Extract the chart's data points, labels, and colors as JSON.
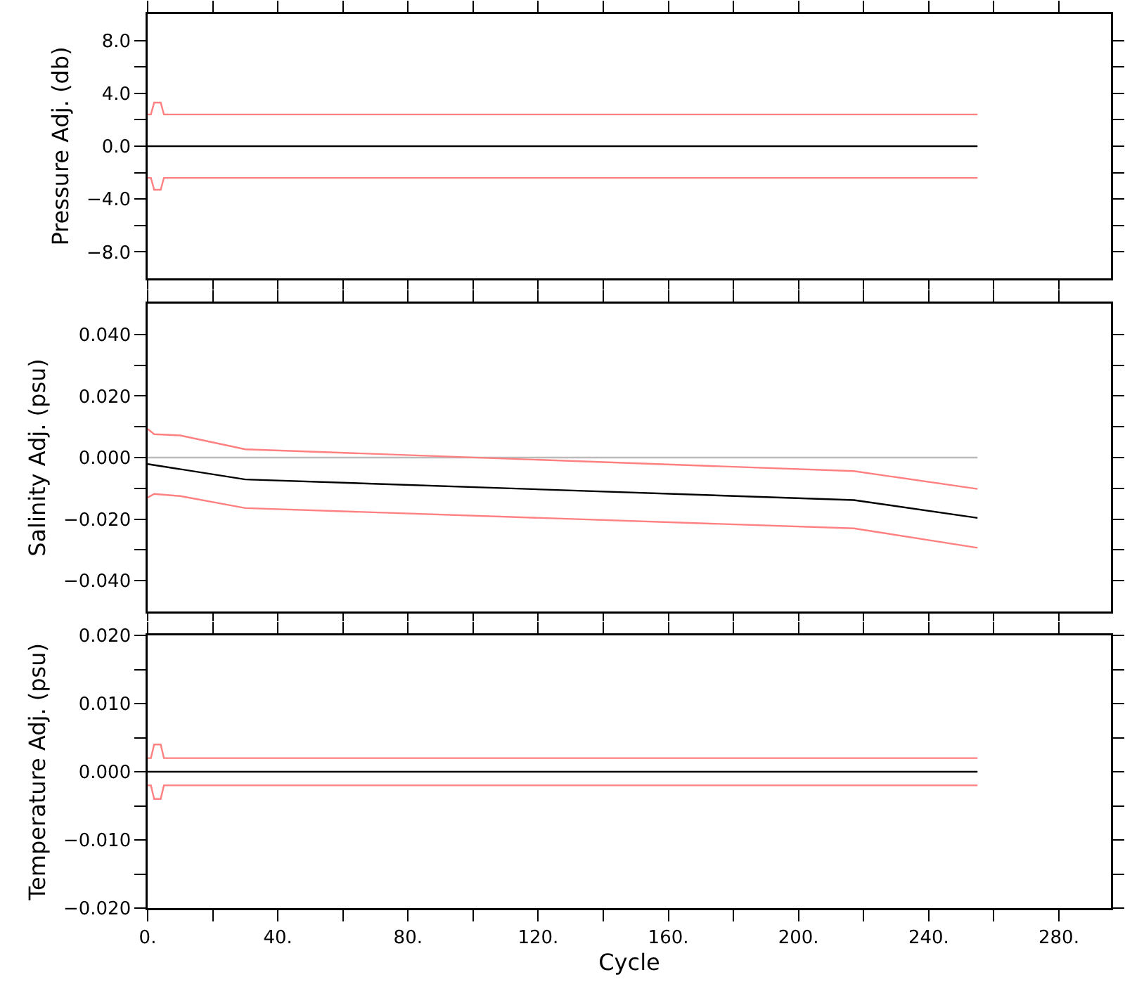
{
  "chart_data": [
    {
      "type": "line",
      "ylabel": "Pressure Adj. (db)",
      "xlim": [
        0,
        296
      ],
      "ylim": [
        -10,
        10
      ],
      "tick_labels": "y",
      "xticks": [
        {
          "value": 0,
          "label": null
        },
        {
          "value": 20,
          "label": null
        },
        {
          "value": 40,
          "label": null
        },
        {
          "value": 60,
          "label": null
        },
        {
          "value": 80,
          "label": null
        },
        {
          "value": 100,
          "label": null
        },
        {
          "value": 120,
          "label": null
        },
        {
          "value": 140,
          "label": null
        },
        {
          "value": 160,
          "label": null
        },
        {
          "value": 180,
          "label": null
        },
        {
          "value": 200,
          "label": null
        },
        {
          "value": 220,
          "label": null
        },
        {
          "value": 240,
          "label": null
        },
        {
          "value": 260,
          "label": null
        },
        {
          "value": 280,
          "label": null
        }
      ],
      "yticks": [
        {
          "value": -8,
          "label": "−8.0"
        },
        {
          "value": -6,
          "label": null
        },
        {
          "value": -4,
          "label": "−4.0"
        },
        {
          "value": -2,
          "label": null
        },
        {
          "value": 0,
          "label": "0.0"
        },
        {
          "value": 2,
          "label": null
        },
        {
          "value": 4,
          "label": "4.0"
        },
        {
          "value": 6,
          "label": null
        },
        {
          "value": 8,
          "label": "8.0"
        }
      ],
      "series": [
        {
          "color": "#ff8080",
          "x": [
            0,
            1,
            2,
            4,
            5,
            255
          ],
          "values": [
            2.4,
            2.4,
            3.3,
            3.3,
            2.4,
            2.4
          ]
        },
        {
          "color": "#ff8080",
          "x": [
            0,
            1,
            2,
            4,
            5,
            255
          ],
          "values": [
            -2.4,
            -2.4,
            -3.3,
            -3.3,
            -2.4,
            -2.4
          ]
        },
        {
          "color": "#000000",
          "x": [
            0,
            255
          ],
          "values": [
            0,
            0
          ]
        }
      ]
    },
    {
      "type": "line",
      "ylabel": "Salinity Adj. (psu)",
      "xlim": [
        0,
        296
      ],
      "ylim": [
        -0.05,
        0.05
      ],
      "tick_labels": "y",
      "xticks": [
        {
          "value": 0,
          "label": null
        },
        {
          "value": 20,
          "label": null
        },
        {
          "value": 40,
          "label": null
        },
        {
          "value": 60,
          "label": null
        },
        {
          "value": 80,
          "label": null
        },
        {
          "value": 100,
          "label": null
        },
        {
          "value": 120,
          "label": null
        },
        {
          "value": 140,
          "label": null
        },
        {
          "value": 160,
          "label": null
        },
        {
          "value": 180,
          "label": null
        },
        {
          "value": 200,
          "label": null
        },
        {
          "value": 220,
          "label": null
        },
        {
          "value": 240,
          "label": null
        },
        {
          "value": 260,
          "label": null
        },
        {
          "value": 280,
          "label": null
        }
      ],
      "yticks": [
        {
          "value": -0.04,
          "label": "−0.040"
        },
        {
          "value": -0.03,
          "label": null
        },
        {
          "value": -0.02,
          "label": "−0.020"
        },
        {
          "value": -0.01,
          "label": null
        },
        {
          "value": 0,
          "label": "0.000"
        },
        {
          "value": 0.01,
          "label": null
        },
        {
          "value": 0.02,
          "label": "0.020"
        },
        {
          "value": 0.03,
          "label": null
        },
        {
          "value": 0.04,
          "label": "0.040"
        }
      ],
      "series": [
        {
          "color": "#bbbbbb",
          "x": [
            0,
            255
          ],
          "values": [
            0,
            0
          ]
        },
        {
          "color": "#ff8080",
          "x": [
            0,
            2,
            10,
            30,
            217,
            255
          ],
          "values": [
            0.0093,
            0.0076,
            0.0072,
            0.0027,
            -0.0044,
            -0.0102
          ]
        },
        {
          "color": "#ff8080",
          "x": [
            0,
            2,
            10,
            30,
            217,
            255
          ],
          "values": [
            -0.013,
            -0.0118,
            -0.0125,
            -0.0164,
            -0.023,
            -0.0293
          ]
        },
        {
          "color": "#000000",
          "x": [
            0,
            30,
            217,
            255
          ],
          "values": [
            -0.0021,
            -0.0071,
            -0.0138,
            -0.0196
          ]
        }
      ]
    },
    {
      "type": "line",
      "xlabel": "Cycle",
      "ylabel": "Temperature Adj. (psu)",
      "xlim": [
        0,
        296
      ],
      "ylim": [
        -0.02,
        0.02
      ],
      "xticks": [
        {
          "value": 0,
          "label": "0."
        },
        {
          "value": 20,
          "label": null
        },
        {
          "value": 40,
          "label": "40."
        },
        {
          "value": 60,
          "label": null
        },
        {
          "value": 80,
          "label": "80."
        },
        {
          "value": 100,
          "label": null
        },
        {
          "value": 120,
          "label": "120."
        },
        {
          "value": 140,
          "label": null
        },
        {
          "value": 160,
          "label": "160."
        },
        {
          "value": 180,
          "label": null
        },
        {
          "value": 200,
          "label": "200."
        },
        {
          "value": 220,
          "label": null
        },
        {
          "value": 240,
          "label": "240."
        },
        {
          "value": 260,
          "label": null
        },
        {
          "value": 280,
          "label": "280."
        }
      ],
      "yticks": [
        {
          "value": -0.02,
          "label": "−0.020"
        },
        {
          "value": -0.015,
          "label": null
        },
        {
          "value": -0.01,
          "label": "−0.010"
        },
        {
          "value": -0.005,
          "label": null
        },
        {
          "value": 0,
          "label": "0.000"
        },
        {
          "value": 0.005,
          "label": null
        },
        {
          "value": 0.01,
          "label": "0.010"
        },
        {
          "value": 0.015,
          "label": null
        },
        {
          "value": 0.02,
          "label": "0.020"
        }
      ],
      "series": [
        {
          "color": "#ff8080",
          "x": [
            0,
            1,
            2,
            4,
            5,
            255
          ],
          "values": [
            0.002,
            0.002,
            0.004,
            0.004,
            0.002,
            0.002
          ]
        },
        {
          "color": "#ff8080",
          "x": [
            0,
            1,
            2,
            4,
            5,
            255
          ],
          "values": [
            -0.002,
            -0.002,
            -0.004,
            -0.004,
            -0.002,
            -0.002
          ]
        },
        {
          "color": "#000000",
          "x": [
            0,
            255
          ],
          "values": [
            0,
            0
          ]
        }
      ]
    }
  ]
}
